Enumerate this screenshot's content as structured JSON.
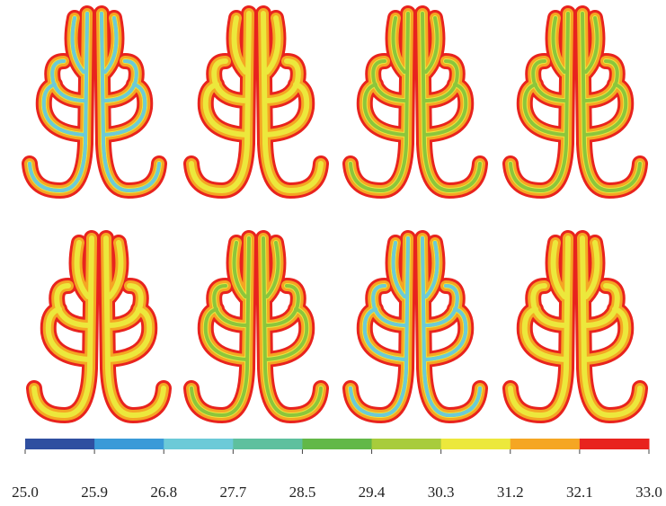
{
  "colorbar": {
    "ticks": [
      "25.0",
      "25.9",
      "26.8",
      "27.7",
      "28.5",
      "29.4",
      "30.3",
      "31.2",
      "32.1",
      "33.0"
    ],
    "colors": [
      "#2f4fa0",
      "#3a9ad8",
      "#6ccad8",
      "#5ec09e",
      "#62b848",
      "#a8cc3c",
      "#ece83c",
      "#f5a623",
      "#e8231e"
    ]
  }
}
